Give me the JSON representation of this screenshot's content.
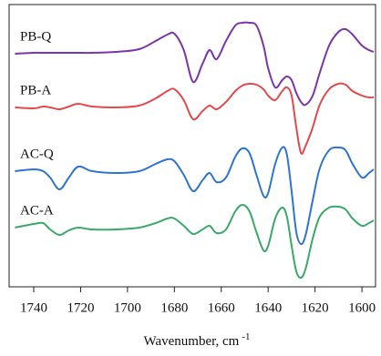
{
  "chart_data": {
    "type": "line",
    "xlabel": "Wavenumber, cm",
    "xlabel_sup": "-1",
    "x": [
      1748,
      1740,
      1736,
      1733,
      1729,
      1725,
      1721,
      1715,
      1705,
      1695,
      1688,
      1683,
      1680,
      1676,
      1672,
      1668,
      1665,
      1662,
      1658,
      1654,
      1651,
      1648,
      1645,
      1642,
      1640,
      1637,
      1634,
      1632,
      1630,
      1628,
      1626,
      1624,
      1621,
      1618,
      1614,
      1610,
      1607,
      1604,
      1600,
      1597,
      1595
    ],
    "xlim": [
      1750.5,
      1594.2
    ],
    "xticks": [
      1740,
      1720,
      1700,
      1680,
      1660,
      1640,
      1620,
      1600
    ],
    "ylim": [
      0,
      310
    ],
    "series": [
      {
        "name": "PB-Q",
        "color": "#7b35a8",
        "values": [
          256,
          257,
          257,
          257,
          257,
          257,
          257,
          257,
          258,
          261,
          270,
          277,
          278,
          260,
          225,
          245,
          260,
          250,
          270,
          287,
          290,
          290,
          287,
          265,
          240,
          219,
          227,
          231,
          227,
          213,
          203,
          200,
          210,
          235,
          265,
          280,
          283,
          277,
          265,
          260,
          258
        ]
      },
      {
        "name": "PB-A",
        "color": "#e5484d",
        "values": [
          197,
          196,
          198,
          197,
          195,
          198,
          201,
          198,
          197,
          199,
          207,
          215,
          217,
          205,
          184,
          193,
          199,
          195,
          203,
          215,
          221,
          223,
          222,
          217,
          210,
          205,
          215,
          219,
          210,
          175,
          147,
          155,
          175,
          200,
          217,
          223,
          222,
          215,
          210,
          208,
          208
        ]
      },
      {
        "name": "AC-Q",
        "color": "#2f74d0",
        "values": [
          127,
          129,
          127,
          120,
          107,
          120,
          132,
          127,
          125,
          127,
          135,
          140,
          138,
          123,
          105,
          117,
          125,
          115,
          120,
          143,
          152,
          147,
          123,
          100,
          103,
          135,
          153,
          145,
          105,
          60,
          47,
          57,
          95,
          130,
          150,
          153,
          150,
          135,
          120,
          125,
          129
        ]
      },
      {
        "name": "AC-A",
        "color": "#3aa96a",
        "values": [
          65,
          69,
          70,
          63,
          57,
          62,
          65,
          63,
          63,
          65,
          70,
          75,
          75,
          67,
          58,
          63,
          67,
          59,
          63,
          83,
          90,
          83,
          60,
          40,
          45,
          75,
          87,
          77,
          45,
          17,
          10,
          20,
          53,
          77,
          87,
          88,
          85,
          75,
          67,
          70,
          73
        ]
      }
    ]
  }
}
